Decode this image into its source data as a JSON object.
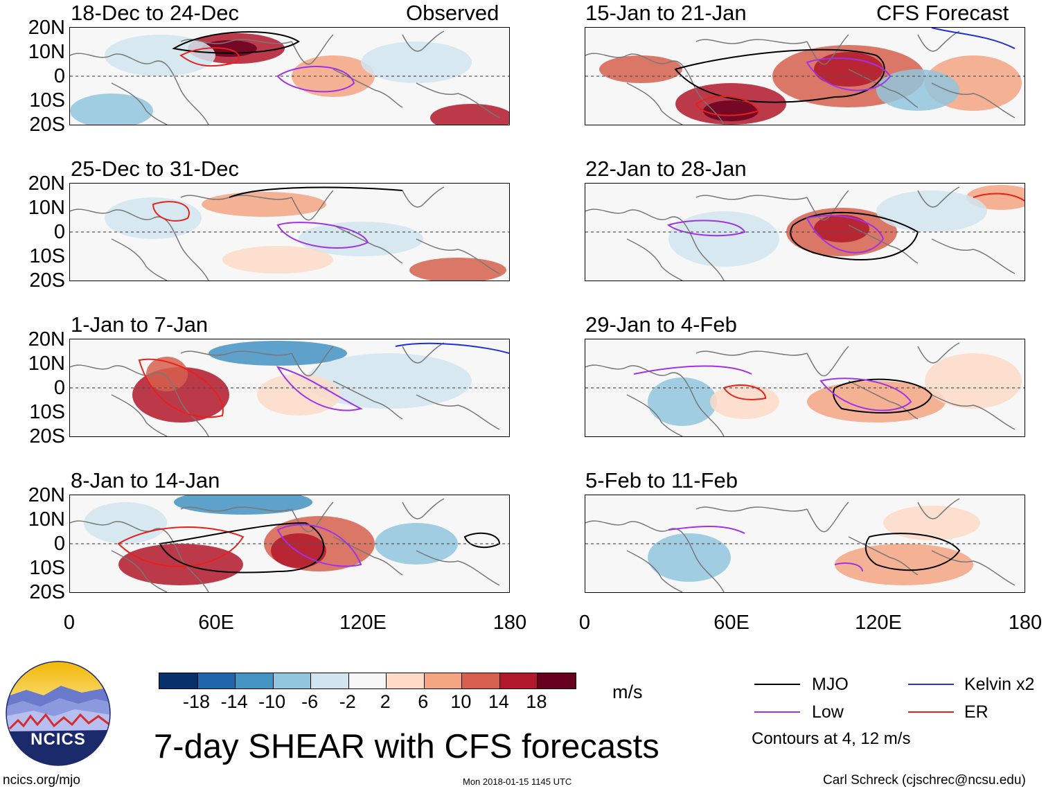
{
  "observed_label": "Observed",
  "forecast_label": "CFS Forecast",
  "panels_left": [
    {
      "title": "18-Dec to 24-Dec"
    },
    {
      "title": "25-Dec to 31-Dec"
    },
    {
      "title": "1-Jan to 7-Jan"
    },
    {
      "title": "8-Jan to 14-Jan"
    }
  ],
  "panels_right": [
    {
      "title": "15-Jan to 21-Jan"
    },
    {
      "title": "22-Jan to 28-Jan"
    },
    {
      "title": "29-Jan to 4-Feb"
    },
    {
      "title": "5-Feb to 11-Feb"
    }
  ],
  "lat_labels": [
    "20N",
    "10N",
    "0",
    "10S",
    "20S"
  ],
  "lon_labels": [
    "0",
    "60E",
    "120E",
    "180"
  ],
  "colorbar": {
    "colors": [
      "#08306b",
      "#2166ac",
      "#4393c3",
      "#92c5de",
      "#d1e5f0",
      "#f7f7f7",
      "#fddbc7",
      "#f4a582",
      "#d6604d",
      "#b2182b",
      "#67001f"
    ],
    "labels": [
      "-18",
      "-14",
      "-10",
      "-6",
      "-2",
      "2",
      "6",
      "10",
      "14",
      "18"
    ],
    "units": "m/s"
  },
  "legend": {
    "items": [
      {
        "label": "MJO",
        "color": "#000000"
      },
      {
        "label": "Kelvin x2",
        "color": "#1f2fd8"
      },
      {
        "label": "Low",
        "color": "#a032e6"
      },
      {
        "label": "ER",
        "color": "#e8201a"
      }
    ],
    "contours_note": "Contours at 4, 12 m/s"
  },
  "main_title": "7-day SHEAR with CFS forecasts",
  "logo_text": "NCICS",
  "footer": {
    "url": "ncics.org/mjo",
    "timestamp": "Mon 2018-01-15 1145 UTC",
    "author": "Carl Schreck (cjschrec@ncsu.edu)"
  }
}
